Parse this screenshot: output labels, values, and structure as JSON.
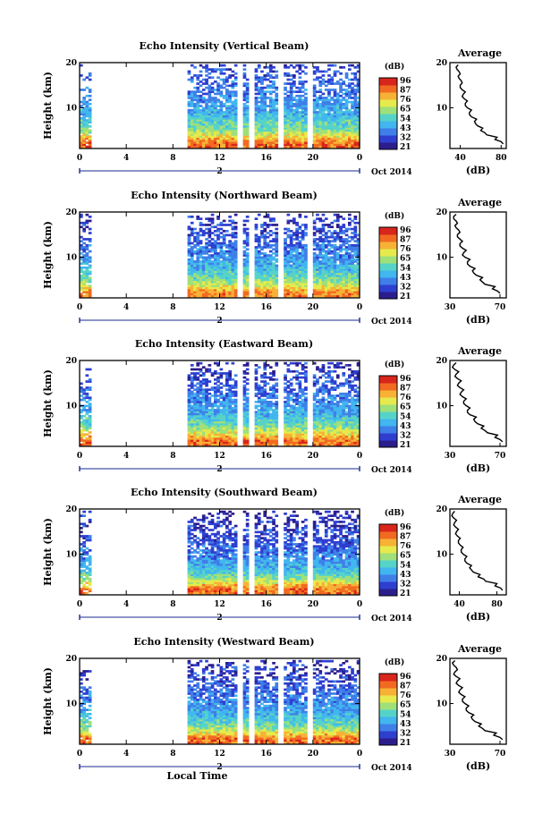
{
  "colors": {
    "colormap": [
      "#2b1e8c",
      "#2e3fd0",
      "#3f7fe8",
      "#41b6ef",
      "#56d3c8",
      "#9fe07a",
      "#e6ea4c",
      "#f7b236",
      "#f26a22",
      "#d8261c"
    ],
    "line": "#000000",
    "axis_marker": "#1a2a8c"
  },
  "chart_data": [
    {
      "type": "heatmap",
      "title": "Echo Intensity (Vertical Beam)",
      "ylabel": "Height (km)",
      "ylim": [
        1,
        20
      ],
      "yticks": [
        "10",
        "20"
      ],
      "xlim": [
        0,
        24
      ],
      "xticks": [
        "0",
        "4",
        "8",
        "12",
        "16",
        "20",
        "0"
      ],
      "date_marker": "2",
      "date_label": "Oct 2014",
      "colorbar": {
        "unit": "(dB)",
        "ticks": [
          "96",
          "87",
          "76",
          "65",
          "54",
          "43",
          "32",
          "21"
        ]
      },
      "data_gaps_hours": [
        [
          1.0,
          9.2
        ],
        [
          13.3,
          13.9
        ],
        [
          14.5,
          14.9
        ],
        [
          17.0,
          17.3
        ],
        [
          19.5,
          19.8
        ]
      ],
      "average_profile": {
        "title": "Average",
        "xlabel": "(dB)",
        "xticks": [
          "40",
          "80"
        ],
        "xlim": [
          30,
          85
        ],
        "heights_km": [
          2,
          3,
          4,
          5,
          6,
          7,
          8,
          9,
          10,
          11,
          12,
          13,
          14,
          15,
          16,
          17,
          18,
          19
        ],
        "values_db": [
          82,
          74,
          66,
          60,
          57,
          54,
          51,
          49,
          47,
          45,
          44,
          43,
          42,
          40,
          41,
          38,
          39,
          36
        ]
      }
    },
    {
      "type": "heatmap",
      "title": "Echo Intensity (Northward Beam)",
      "ylabel": "Height (km)",
      "ylim": [
        1,
        20
      ],
      "yticks": [
        "10",
        "20"
      ],
      "xlim": [
        0,
        24
      ],
      "xticks": [
        "0",
        "4",
        "8",
        "12",
        "16",
        "20",
        "0"
      ],
      "date_marker": "2",
      "date_label": "Oct 2014",
      "colorbar": {
        "unit": "(dB)",
        "ticks": [
          "96",
          "87",
          "76",
          "65",
          "54",
          "43",
          "32",
          "21"
        ]
      },
      "data_gaps_hours": [
        [
          1.0,
          9.2
        ],
        [
          13.3,
          13.9
        ],
        [
          14.5,
          14.9
        ],
        [
          17.0,
          17.3
        ],
        [
          19.5,
          19.8
        ]
      ],
      "average_profile": {
        "title": "Average",
        "xlabel": "(dB)",
        "xticks": [
          "30",
          "70"
        ],
        "xlim": [
          30,
          75
        ],
        "heights_km": [
          2,
          3,
          4,
          5,
          6,
          7,
          8,
          9,
          10,
          11,
          12,
          13,
          14,
          15,
          16,
          17,
          18,
          19
        ],
        "values_db": [
          70,
          64,
          58,
          54,
          51,
          48,
          46,
          44,
          42,
          41,
          40,
          38,
          38,
          36,
          37,
          34,
          35,
          33
        ]
      }
    },
    {
      "type": "heatmap",
      "title": "Echo Intensity (Eastward Beam)",
      "ylabel": "Height (km)",
      "ylim": [
        1,
        20
      ],
      "yticks": [
        "10",
        "20"
      ],
      "xlim": [
        0,
        24
      ],
      "xticks": [
        "0",
        "4",
        "8",
        "12",
        "16",
        "20",
        "0"
      ],
      "date_marker": "2",
      "date_label": "Oct 2014",
      "colorbar": {
        "unit": "(dB)",
        "ticks": [
          "96",
          "87",
          "76",
          "65",
          "54",
          "43",
          "32",
          "21"
        ]
      },
      "data_gaps_hours": [
        [
          1.0,
          9.2
        ],
        [
          13.3,
          13.9
        ],
        [
          14.5,
          14.9
        ],
        [
          17.0,
          17.3
        ],
        [
          19.5,
          19.8
        ]
      ],
      "average_profile": {
        "title": "Average",
        "xlabel": "(dB)",
        "xticks": [
          "30",
          "70"
        ],
        "xlim": [
          30,
          75
        ],
        "heights_km": [
          2,
          3,
          4,
          5,
          6,
          7,
          8,
          9,
          10,
          11,
          12,
          13,
          14,
          15,
          16,
          17,
          18,
          19
        ],
        "values_db": [
          72,
          66,
          60,
          55,
          52,
          49,
          46,
          44,
          43,
          41,
          40,
          39,
          38,
          37,
          36,
          35,
          34,
          33
        ]
      }
    },
    {
      "type": "heatmap",
      "title": "Echo Intensity (Southward Beam)",
      "ylabel": "Height (km)",
      "ylim": [
        1,
        20
      ],
      "yticks": [
        "10",
        "20"
      ],
      "xlim": [
        0,
        24
      ],
      "xticks": [
        "0",
        "4",
        "8",
        "12",
        "16",
        "20",
        "0"
      ],
      "date_marker": "2",
      "date_label": "Oct 2014",
      "colorbar": {
        "unit": "(dB)",
        "ticks": [
          "96",
          "87",
          "76",
          "65",
          "54",
          "43",
          "32",
          "21"
        ]
      },
      "data_gaps_hours": [
        [
          1.0,
          9.2
        ],
        [
          13.3,
          13.9
        ],
        [
          14.5,
          14.9
        ],
        [
          17.0,
          17.3
        ],
        [
          19.5,
          19.8
        ]
      ],
      "average_profile": {
        "title": "Average",
        "xlabel": "(dB)",
        "xticks": [
          "40",
          "80"
        ],
        "xlim": [
          30,
          90
        ],
        "heights_km": [
          2,
          3,
          4,
          5,
          6,
          7,
          8,
          9,
          10,
          11,
          12,
          13,
          14,
          15,
          16,
          17,
          18,
          19
        ],
        "values_db": [
          86,
          78,
          68,
          60,
          55,
          51,
          48,
          46,
          44,
          42,
          41,
          39,
          38,
          37,
          36,
          35,
          34,
          33
        ]
      }
    },
    {
      "type": "heatmap",
      "title": "Echo Intensity (Westward Beam)",
      "ylabel": "Height (km)",
      "ylim": [
        1,
        20
      ],
      "yticks": [
        "10",
        "20"
      ],
      "xlim": [
        0,
        24
      ],
      "xticks": [
        "0",
        "4",
        "8",
        "12",
        "16",
        "20",
        "0"
      ],
      "date_marker": "2",
      "date_label": "Oct 2014",
      "xlabel": "Local Time",
      "colorbar": {
        "unit": "(dB)",
        "ticks": [
          "96",
          "87",
          "76",
          "65",
          "54",
          "43",
          "32",
          "21"
        ]
      },
      "data_gaps_hours": [
        [
          1.0,
          9.2
        ],
        [
          13.3,
          13.9
        ],
        [
          14.5,
          14.9
        ],
        [
          17.0,
          17.3
        ],
        [
          19.5,
          19.8
        ]
      ],
      "average_profile": {
        "title": "Average",
        "xlabel": "(dB)",
        "xticks": [
          "30",
          "70"
        ],
        "xlim": [
          30,
          75
        ],
        "heights_km": [
          2,
          3,
          4,
          5,
          6,
          7,
          8,
          9,
          10,
          11,
          12,
          13,
          14,
          15,
          16,
          17,
          18,
          19
        ],
        "values_db": [
          72,
          65,
          58,
          53,
          50,
          47,
          45,
          43,
          42,
          40,
          39,
          38,
          37,
          36,
          35,
          34,
          35,
          32
        ]
      }
    }
  ]
}
